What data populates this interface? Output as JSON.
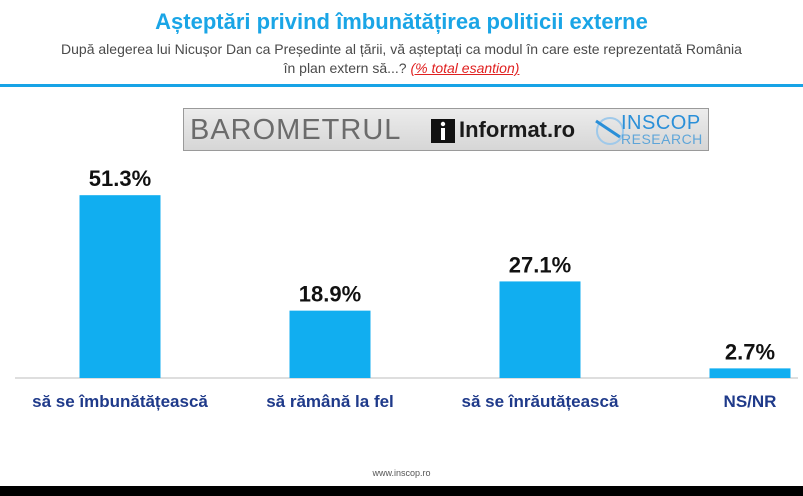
{
  "header": {
    "title": "Așteptări privind îmbunătățirea politicii externe",
    "subtitle": "După alegerea lui Nicușor Dan ca Președinte al țării, vă așteptați ca modul în care este reprezentată România în plan extern să...?",
    "subtitle_note": "(% total esantion)"
  },
  "banner": {
    "wordmark": "BAROMETRUL",
    "partner": "Informat.ro",
    "brand": "INSCOP",
    "brand_sub": "RESEARCH"
  },
  "colors": {
    "accent": "#1aa5e6",
    "bar": "#11aef0",
    "note": "#e02020"
  },
  "chart_data": {
    "type": "bar",
    "categories": [
      "să se îmbunătățească",
      "să rămână la fel",
      "să se înrăutățească",
      "NS/NR"
    ],
    "values": [
      51.3,
      18.9,
      27.1,
      2.7
    ],
    "value_labels": [
      "51.3%",
      "18.9%",
      "27.1%",
      "2.7%"
    ],
    "ylim": [
      0,
      55
    ],
    "grid": false
  },
  "footer": {
    "url": "www.inscop.ro"
  }
}
